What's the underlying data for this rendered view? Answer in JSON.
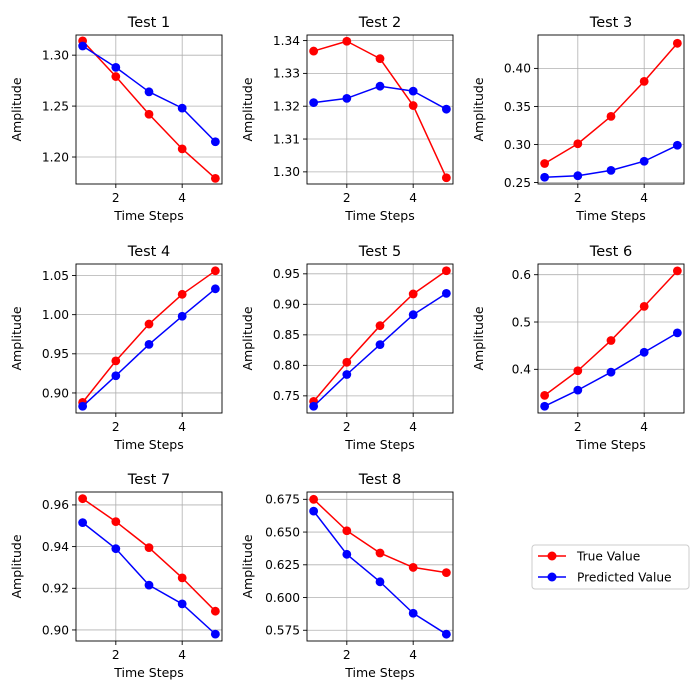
{
  "figure": {
    "xlabel": "Time Steps",
    "ylabel": "Amplitude",
    "colors": {
      "true": "#ff0000",
      "pred": "#0000ff",
      "grid": "#b0b0b0"
    },
    "legend": {
      "placement": "right, beside Test 8",
      "entries": [
        "True Value",
        "Predicted Value"
      ]
    }
  },
  "chart_data": [
    {
      "type": "line",
      "title": "Test 1",
      "x": [
        1,
        2,
        3,
        4,
        5
      ],
      "series": [
        {
          "name": "True Value",
          "color": "#ff0000",
          "values": [
            1.314,
            1.279,
            1.242,
            1.208,
            1.179
          ]
        },
        {
          "name": "Predicted Value",
          "color": "#0000ff",
          "values": [
            1.309,
            1.288,
            1.264,
            1.248,
            1.215
          ]
        }
      ],
      "xticks": [
        2,
        4
      ],
      "xlim": [
        0.8,
        5.2
      ],
      "yticks": [
        1.2,
        1.25,
        1.3
      ],
      "ytick_labels": [
        "1.20",
        "1.25",
        "1.30"
      ],
      "ylim": [
        1.1735,
        1.3198
      ],
      "grid": true
    },
    {
      "type": "line",
      "title": "Test 2",
      "x": [
        1,
        2,
        3,
        4,
        5
      ],
      "series": [
        {
          "name": "True Value",
          "color": "#ff0000",
          "values": [
            1.3368,
            1.3398,
            1.3345,
            1.3202,
            1.2982
          ]
        },
        {
          "name": "Predicted Value",
          "color": "#0000ff",
          "values": [
            1.3211,
            1.3224,
            1.3261,
            1.3246,
            1.3191
          ]
        }
      ],
      "xticks": [
        2,
        4
      ],
      "xlim": [
        0.8,
        5.2
      ],
      "yticks": [
        1.3,
        1.31,
        1.32,
        1.33,
        1.34
      ],
      "ytick_labels": [
        "1.30",
        "1.31",
        "1.32",
        "1.33",
        "1.34"
      ],
      "ylim": [
        1.2963,
        1.3417
      ],
      "grid": true
    },
    {
      "type": "line",
      "title": "Test 3",
      "x": [
        1,
        2,
        3,
        4,
        5
      ],
      "series": [
        {
          "name": "True Value",
          "color": "#ff0000",
          "values": [
            0.275,
            0.301,
            0.337,
            0.383,
            0.433
          ]
        },
        {
          "name": "Predicted Value",
          "color": "#0000ff",
          "values": [
            0.257,
            0.259,
            0.266,
            0.278,
            0.299
          ]
        }
      ],
      "xticks": [
        2,
        4
      ],
      "xlim": [
        0.8,
        5.2
      ],
      "yticks": [
        0.25,
        0.3,
        0.35,
        0.4
      ],
      "ytick_labels": [
        "0.25",
        "0.30",
        "0.35",
        "0.40"
      ],
      "ylim": [
        0.2481,
        0.4439
      ],
      "grid": true
    },
    {
      "type": "line",
      "title": "Test 4",
      "x": [
        1,
        2,
        3,
        4,
        5
      ],
      "series": [
        {
          "name": "True Value",
          "color": "#ff0000",
          "values": [
            0.888,
            0.941,
            0.988,
            1.026,
            1.056
          ]
        },
        {
          "name": "Predicted Value",
          "color": "#0000ff",
          "values": [
            0.883,
            0.922,
            0.962,
            0.998,
            1.033
          ]
        }
      ],
      "xticks": [
        2,
        4
      ],
      "xlim": [
        0.8,
        5.2
      ],
      "yticks": [
        0.9,
        0.95,
        1.0,
        1.05
      ],
      "ytick_labels": [
        "0.90",
        "0.95",
        "1.00",
        "1.05"
      ],
      "ylim": [
        0.8744,
        1.0647
      ],
      "grid": true
    },
    {
      "type": "line",
      "title": "Test 5",
      "x": [
        1,
        2,
        3,
        4,
        5
      ],
      "series": [
        {
          "name": "True Value",
          "color": "#ff0000",
          "values": [
            0.741,
            0.805,
            0.865,
            0.917,
            0.955
          ]
        },
        {
          "name": "Predicted Value",
          "color": "#0000ff",
          "values": [
            0.733,
            0.785,
            0.834,
            0.883,
            0.918
          ]
        }
      ],
      "xticks": [
        2,
        4
      ],
      "xlim": [
        0.8,
        5.2
      ],
      "yticks": [
        0.75,
        0.8,
        0.85,
        0.9,
        0.95
      ],
      "ytick_labels": [
        "0.75",
        "0.80",
        "0.85",
        "0.90",
        "0.95"
      ],
      "ylim": [
        0.7219,
        0.9661
      ],
      "grid": true
    },
    {
      "type": "line",
      "title": "Test 6",
      "x": [
        1,
        2,
        3,
        4,
        5
      ],
      "series": [
        {
          "name": "True Value",
          "color": "#ff0000",
          "values": [
            0.345,
            0.397,
            0.461,
            0.533,
            0.608
          ]
        },
        {
          "name": "Predicted Value",
          "color": "#0000ff",
          "values": [
            0.322,
            0.356,
            0.394,
            0.436,
            0.477
          ]
        }
      ],
      "xticks": [
        2,
        4
      ],
      "xlim": [
        0.8,
        5.2
      ],
      "yticks": [
        0.4,
        0.5,
        0.6
      ],
      "ytick_labels": [
        "0.4",
        "0.5",
        "0.6"
      ],
      "ylim": [
        0.3077,
        0.6226
      ],
      "grid": true
    },
    {
      "type": "line",
      "title": "Test 7",
      "x": [
        1,
        2,
        3,
        4,
        5
      ],
      "series": [
        {
          "name": "True Value",
          "color": "#ff0000",
          "values": [
            0.963,
            0.952,
            0.9395,
            0.925,
            0.909
          ]
        },
        {
          "name": "Predicted Value",
          "color": "#0000ff",
          "values": [
            0.9515,
            0.939,
            0.9215,
            0.9125,
            0.898
          ]
        }
      ],
      "xticks": [
        2,
        4
      ],
      "xlim": [
        0.8,
        5.2
      ],
      "yticks": [
        0.9,
        0.92,
        0.94,
        0.96
      ],
      "ytick_labels": [
        "0.90",
        "0.92",
        "0.94",
        "0.96"
      ],
      "ylim": [
        0.8947,
        0.9662
      ],
      "grid": true
    },
    {
      "type": "line",
      "title": "Test 8",
      "x": [
        1,
        2,
        3,
        4,
        5
      ],
      "series": [
        {
          "name": "True Value",
          "color": "#ff0000",
          "values": [
            0.675,
            0.651,
            0.634,
            0.623,
            0.619
          ]
        },
        {
          "name": "Predicted Value",
          "color": "#0000ff",
          "values": [
            0.666,
            0.633,
            0.612,
            0.588,
            0.572
          ]
        }
      ],
      "xticks": [
        2,
        4
      ],
      "xlim": [
        0.8,
        5.2
      ],
      "yticks": [
        0.575,
        0.6,
        0.625,
        0.65,
        0.675
      ],
      "ytick_labels": [
        "0.575",
        "0.600",
        "0.625",
        "0.650",
        "0.675"
      ],
      "ylim": [
        0.5668,
        0.6806
      ],
      "grid": true
    }
  ]
}
